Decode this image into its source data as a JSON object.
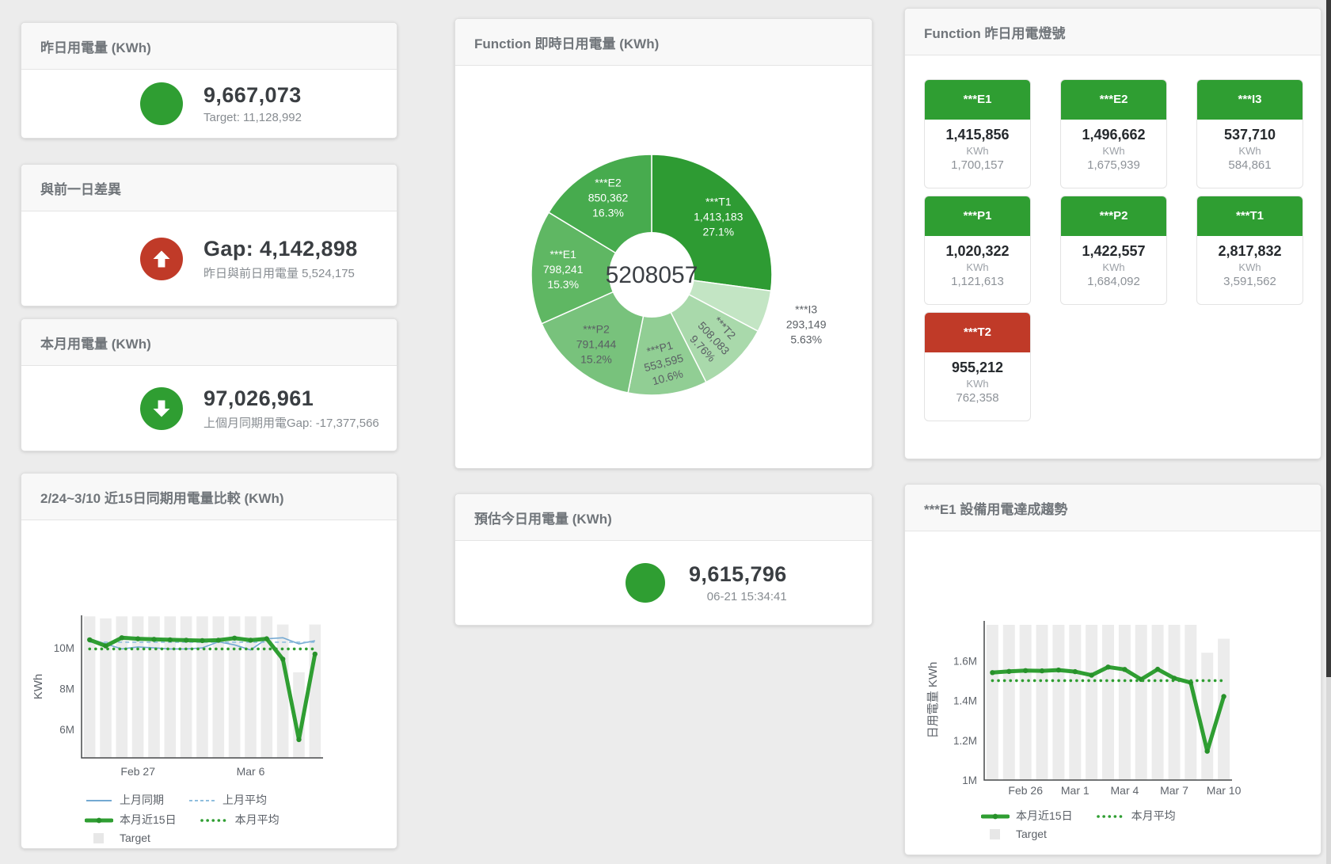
{
  "colors": {
    "green": "#2f9e32",
    "green_dark": "#27912a",
    "red": "#c03a28",
    "blue": "#74a9d2",
    "blue_light": "#8fbede",
    "bar_gray": "#ececec",
    "scrollbar_thumb": "#3a3a3a"
  },
  "cards": {
    "yesterday": {
      "title": "昨日用電量 (KWh)",
      "value": "9,667,073",
      "subtitle": "Target: 11,128,992"
    },
    "gap": {
      "title": "與前一日差異",
      "value": "Gap: 4,142,898",
      "subtitle": "昨日與前日用電量 5,524,175"
    },
    "month": {
      "title": "本月用電量 (KWh)",
      "value": "97,026,961",
      "subtitle": "上個月同期用電Gap: -17,377,566"
    },
    "estimate": {
      "title": "預估今日用電量 (KWh)",
      "value": "9,615,796",
      "subtitle": "06-21 15:34:41"
    }
  },
  "lights": {
    "title": "Function 昨日用電燈號",
    "tiles": [
      {
        "label": "***E1",
        "value": "1,415,856",
        "unit": "KWh",
        "secondary": "1,700,157",
        "status": "green"
      },
      {
        "label": "***E2",
        "value": "1,496,662",
        "unit": "KWh",
        "secondary": "1,675,939",
        "status": "green"
      },
      {
        "label": "***I3",
        "value": "537,710",
        "unit": "KWh",
        "secondary": "584,861",
        "status": "green"
      },
      {
        "label": "***P1",
        "value": "1,020,322",
        "unit": "KWh",
        "secondary": "1,121,613",
        "status": "green"
      },
      {
        "label": "***P2",
        "value": "1,422,557",
        "unit": "KWh",
        "secondary": "1,684,092",
        "status": "green"
      },
      {
        "label": "***T1",
        "value": "2,817,832",
        "unit": "KWh",
        "secondary": "3,591,562",
        "status": "green"
      },
      {
        "label": "***T2",
        "value": "955,212",
        "unit": "KWh",
        "secondary": "762,358",
        "status": "red"
      }
    ]
  },
  "chart_data": [
    {
      "id": "realtime_donut",
      "type": "pie",
      "title": "Function 即時日用電量 (KWh)",
      "center_total": "5208057",
      "total": 5208057,
      "slices": [
        {
          "name": "***T1",
          "value": 1413183,
          "display": "1,413,183",
          "pct": "27.1%",
          "color": "#2e9b33",
          "label_color": "#ffffff",
          "label_rotate": 0,
          "outside": false
        },
        {
          "name": "***I3",
          "value": 293149,
          "display": "293,149",
          "pct": "5.63%",
          "color": "#c3e5c4",
          "label_color": "#5a5f64",
          "label_rotate": 0,
          "outside": true
        },
        {
          "name": "***T2",
          "value": 508083,
          "display": "508,083",
          "pct": "9.76%",
          "color": "#a9d9ab",
          "label_color": "#5a5f64",
          "label_rotate": 47,
          "outside": false
        },
        {
          "name": "***P1",
          "value": 553595,
          "display": "553,595",
          "pct": "10.6%",
          "color": "#91ce94",
          "label_color": "#5a5f64",
          "label_rotate": -15,
          "outside": false
        },
        {
          "name": "***P2",
          "value": 791444,
          "display": "791,444",
          "pct": "15.2%",
          "color": "#78c27c",
          "label_color": "#5a5f64",
          "label_rotate": 0,
          "outside": false
        },
        {
          "name": "***E1",
          "value": 798241,
          "display": "798,241",
          "pct": "15.3%",
          "color": "#5fb763",
          "label_color": "#ffffff",
          "label_rotate": 0,
          "outside": false
        },
        {
          "name": "***E2",
          "value": 850362,
          "display": "850,362",
          "pct": "16.3%",
          "color": "#47ab4e",
          "label_color": "#ffffff",
          "label_rotate": 0,
          "outside": false
        }
      ]
    },
    {
      "id": "compare_15d",
      "type": "bar",
      "title": "2/24~3/10 近15日同期用電量比較 (KWh)",
      "ylabel": "KWh",
      "ylim": [
        4.6,
        11.6
      ],
      "yticks": [
        {
          "value": 6,
          "label": "6M"
        },
        {
          "value": 8,
          "label": "8M"
        },
        {
          "value": 10,
          "label": "10M"
        }
      ],
      "xticks": [
        {
          "index": 3,
          "label": "Feb 27"
        },
        {
          "index": 10,
          "label": "Mar 6"
        }
      ],
      "bars": {
        "name": "Target",
        "color": "#ececec",
        "values": [
          11.55,
          11.45,
          11.55,
          11.55,
          11.55,
          11.55,
          11.55,
          11.55,
          11.55,
          11.55,
          11.55,
          11.55,
          11.15,
          8.8,
          11.15
        ]
      },
      "series": [
        {
          "name": "上月同期",
          "style": "solid",
          "color": "#74a9d2",
          "values": [
            10.45,
            10.2,
            9.95,
            10.05,
            10.0,
            9.95,
            9.95,
            10.0,
            10.3,
            10.15,
            9.9,
            10.45,
            10.5,
            10.2,
            10.35
          ]
        },
        {
          "name": "上月平均",
          "style": "dashed",
          "color": "#8fbede",
          "values": [
            10.28,
            10.28,
            10.28,
            10.28,
            10.28,
            10.28,
            10.28,
            10.28,
            10.28,
            10.28,
            10.28,
            10.28,
            10.28,
            10.28,
            10.28
          ]
        },
        {
          "name": "本月近15日",
          "style": "thick",
          "color": "#2f9e32",
          "values": [
            10.4,
            10.1,
            10.5,
            10.45,
            10.42,
            10.4,
            10.38,
            10.36,
            10.38,
            10.48,
            10.38,
            10.45,
            9.45,
            5.5,
            9.7
          ]
        },
        {
          "name": "本月平均",
          "style": "dotted",
          "color": "#2f9e32",
          "values": [
            9.95,
            9.95,
            9.95,
            9.95,
            9.95,
            9.95,
            9.95,
            9.95,
            9.95,
            9.95,
            9.95,
            9.95,
            9.95,
            9.95,
            9.95
          ]
        }
      ],
      "legend_rows": [
        [
          "上月同期",
          "上月平均"
        ],
        [
          "本月近15日",
          "本月平均"
        ],
        [
          "Target"
        ]
      ]
    },
    {
      "id": "e1_trend",
      "type": "bar",
      "title": "***E1 設備用電達成趨勢",
      "ylabel": "日用電量 KWh",
      "ylim": [
        1.0,
        1.8
      ],
      "yticks": [
        {
          "value": 1.0,
          "label": "1M"
        },
        {
          "value": 1.2,
          "label": "1.2M"
        },
        {
          "value": 1.4,
          "label": "1.4M"
        },
        {
          "value": 1.6,
          "label": "1.6M"
        }
      ],
      "xticks": [
        {
          "index": 2,
          "label": "Feb 26"
        },
        {
          "index": 5,
          "label": "Mar 1"
        },
        {
          "index": 8,
          "label": "Mar 4"
        },
        {
          "index": 11,
          "label": "Mar 7"
        },
        {
          "index": 14,
          "label": "Mar 10"
        }
      ],
      "bars": {
        "name": "Target",
        "color": "#ececec",
        "values": [
          1.78,
          1.78,
          1.78,
          1.78,
          1.78,
          1.78,
          1.78,
          1.78,
          1.78,
          1.78,
          1.78,
          1.78,
          1.78,
          1.64,
          1.71
        ]
      },
      "series": [
        {
          "name": "本月近15日",
          "style": "thick",
          "color": "#2f9e32",
          "values": [
            1.54,
            1.546,
            1.55,
            1.549,
            1.553,
            1.545,
            1.527,
            1.568,
            1.556,
            1.506,
            1.557,
            1.512,
            1.49,
            1.145,
            1.42
          ]
        },
        {
          "name": "本月平均",
          "style": "dotted",
          "color": "#2f9e32",
          "values": [
            1.5,
            1.5,
            1.5,
            1.5,
            1.5,
            1.5,
            1.5,
            1.5,
            1.5,
            1.5,
            1.5,
            1.5,
            1.5,
            1.5,
            1.5
          ]
        }
      ],
      "legend_rows": [
        [
          "本月近15日",
          "本月平均"
        ],
        [
          "Target"
        ]
      ]
    }
  ]
}
